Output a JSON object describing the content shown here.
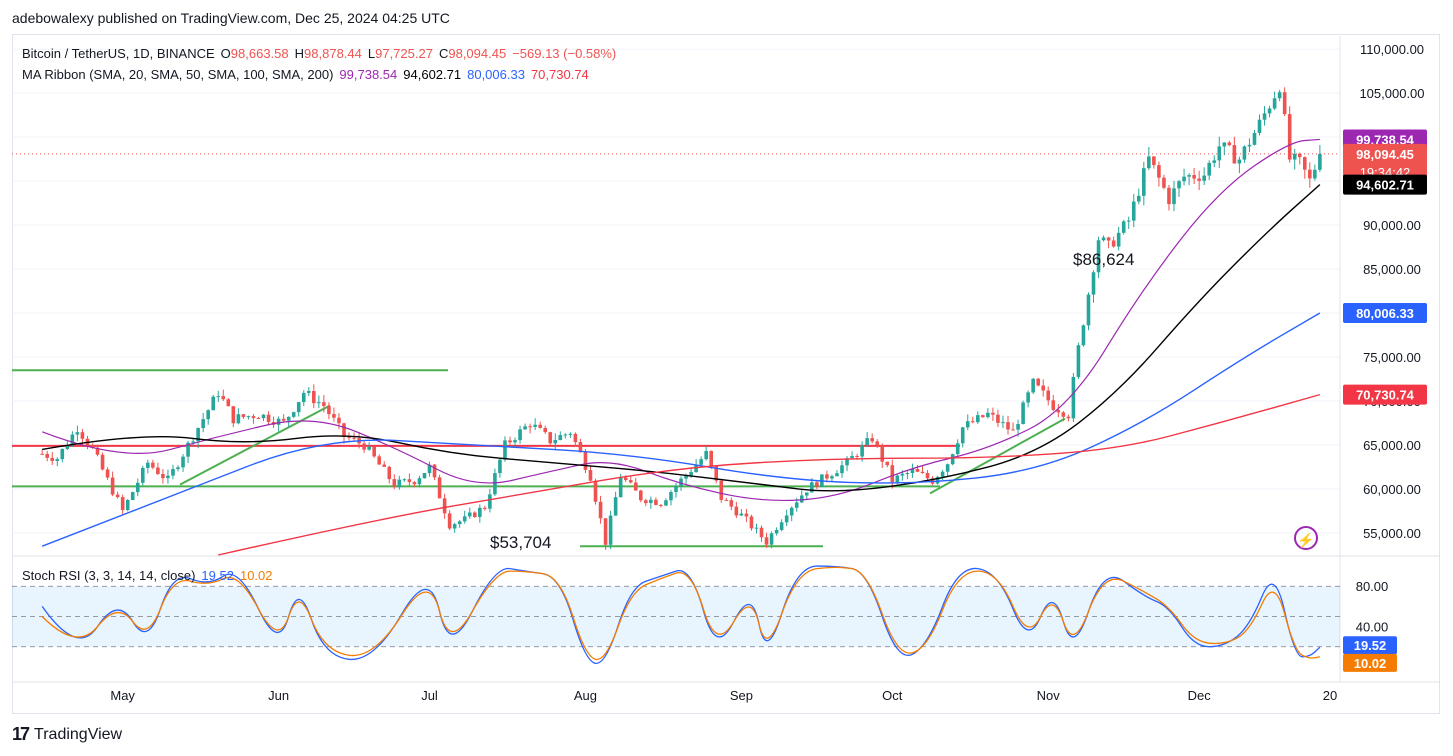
{
  "header": {
    "publisher_line": "adebowalexy published on TradingView.com, Dec 25, 2024 04:25 UTC"
  },
  "legend": {
    "symbol": "Bitcoin / TetherUS, 1D, BINANCE",
    "open_label": "O",
    "open": "98,663.58",
    "high_label": "H",
    "high": "98,878.44",
    "low_label": "L",
    "low": "97,725.27",
    "close_label": "C",
    "close": "98,094.45",
    "change": "−569.13 (−0.58%)",
    "ribbon_label": "MA Ribbon (SMA, 20, SMA, 50, SMA, 100, SMA, 200)",
    "ma20": "99,738.54",
    "ma50": "94,602.71",
    "ma100": "80,006.33",
    "ma200": "70,730.74"
  },
  "rsi_legend": {
    "label": "Stoch RSI (3, 3, 14, 14, close)",
    "k": "19.52",
    "d": "10.02"
  },
  "price_tags": {
    "ma20": "99,738.54",
    "close": "98,094.45",
    "countdown": "19:34:42",
    "ma50": "94,602.71",
    "ma100": "80,006.33",
    "ma200": "70,730.74"
  },
  "rsi_tags": {
    "k": "19.52",
    "d": "10.02"
  },
  "annotations": {
    "high_label": "$86,624",
    "low_label": "$53,704"
  },
  "footer": {
    "brand": "TradingView",
    "logo": "17"
  },
  "colors": {
    "up": "#26a69a",
    "down": "#ef5350",
    "ma20": "#9c27b0",
    "ma50": "#000000",
    "ma100": "#2962ff",
    "ma200": "#f23645",
    "stoch_k": "#2962ff",
    "stoch_d": "#f57c00",
    "trend": "#4caf50",
    "resistance": "#f23645"
  },
  "chart_data": [
    {
      "type": "candlestick",
      "title": "Bitcoin / TetherUS, 1D, BINANCE",
      "x_ticks": [
        "May",
        "Jun",
        "Jul",
        "Aug",
        "Sep",
        "Oct",
        "Nov",
        "Dec",
        "20"
      ],
      "y_ticks": [
        55000,
        60000,
        65000,
        70000,
        75000,
        80000,
        85000,
        90000,
        95000,
        100000,
        105000,
        110000
      ],
      "y_tick_labels": [
        "55,000.00",
        "60,000.00",
        "65,000.00",
        "70,000.00",
        "75,000.00",
        "80,000.00",
        "85,000.00",
        "90,000.00",
        "95,000.00",
        "100,000.00",
        "105,000.00",
        "110,000.00"
      ],
      "ylim": [
        52500,
        111500
      ],
      "close_path": [
        [
          "Apr 15",
          64000
        ],
        [
          "Apr 18",
          63500
        ],
        [
          "Apr 22",
          67000
        ],
        [
          "Apr 25",
          64500
        ],
        [
          "May 1",
          57500
        ],
        [
          "May 6",
          63000
        ],
        [
          "May 10",
          61000
        ],
        [
          "May 15",
          66000
        ],
        [
          "May 20",
          71000
        ],
        [
          "May 23",
          68000
        ],
        [
          "May 28",
          68500
        ],
        [
          "Jun 2",
          67500
        ],
        [
          "Jun 6",
          71000
        ],
        [
          "Jun 10",
          69500
        ],
        [
          "Jun 14",
          66000
        ],
        [
          "Jun 18",
          65000
        ],
        [
          "Jun 24",
          60500
        ],
        [
          "Jun 28",
          61000
        ],
        [
          "Jul 1",
          62500
        ],
        [
          "Jul 5",
          56000
        ],
        [
          "Jul 8",
          56500
        ],
        [
          "Jul 12",
          58000
        ],
        [
          "Jul 16",
          65000
        ],
        [
          "Jul 21",
          67500
        ],
        [
          "Jul 25",
          65500
        ],
        [
          "Jul 29",
          66500
        ],
        [
          "Aug 2",
          61500
        ],
        [
          "Aug 5",
          54000
        ],
        [
          "Aug 8",
          61500
        ],
        [
          "Aug 12",
          59000
        ],
        [
          "Aug 16",
          58500
        ],
        [
          "Aug 20",
          61000
        ],
        [
          "Aug 25",
          64000
        ],
        [
          "Aug 28",
          59000
        ],
        [
          "Sep 1",
          57000
        ],
        [
          "Sep 6",
          54000
        ],
        [
          "Sep 10",
          57500
        ],
        [
          "Sep 14",
          60000
        ],
        [
          "Sep 18",
          61500
        ],
        [
          "Sep 22",
          63000
        ],
        [
          "Sep 27",
          65800
        ],
        [
          "Oct 1",
          61000
        ],
        [
          "Oct 5",
          62000
        ],
        [
          "Oct 9",
          61000
        ],
        [
          "Oct 12",
          63000
        ],
        [
          "Oct 15",
          67000
        ],
        [
          "Oct 20",
          68500
        ],
        [
          "Oct 25",
          66500
        ],
        [
          "Oct 29",
          72000
        ],
        [
          "Nov 2",
          69500
        ],
        [
          "Nov 5",
          68500
        ],
        [
          "Nov 7",
          76000
        ],
        [
          "Nov 11",
          88500
        ],
        [
          "Nov 13",
          87500
        ],
        [
          "Nov 17",
          90500
        ],
        [
          "Nov 21",
          97500
        ],
        [
          "Nov 25",
          93000
        ],
        [
          "Nov 28",
          95500
        ],
        [
          "Dec 2",
          95800
        ],
        [
          "Dec 5",
          99000
        ],
        [
          "Dec 9",
          97500
        ],
        [
          "Dec 13",
          101500
        ],
        [
          "Dec 17",
          106000
        ],
        [
          "Dec 19",
          97500
        ],
        [
          "Dec 21",
          97000
        ],
        [
          "Dec 23",
          95000
        ],
        [
          "Dec 25",
          98094
        ]
      ],
      "series": [
        {
          "name": "SMA 20",
          "values": [
            [
              "Apr 15",
              66500
            ],
            [
              "May 1",
              63000
            ],
            [
              "May 20",
              66000
            ],
            [
              "Jun 8",
              68500
            ],
            [
              "Jun 25",
              64500
            ],
            [
              "Jul 10",
              60000
            ],
            [
              "Jul 25",
              62000
            ],
            [
              "Aug 6",
              63500
            ],
            [
              "Aug 20",
              60500
            ],
            [
              "Sep 5",
              58500
            ],
            [
              "Sep 20",
              59000
            ],
            [
              "Oct 5",
              62500
            ],
            [
              "Oct 20",
              64500
            ],
            [
              "Nov 5",
              69000
            ],
            [
              "Nov 20",
              83000
            ],
            [
              "Dec 5",
              94000
            ],
            [
              "Dec 19",
              99500
            ],
            [
              "Dec 25",
              99739
            ]
          ]
        },
        {
          "name": "SMA 50",
          "values": [
            [
              "Apr 15",
              64500
            ],
            [
              "May 5",
              66500
            ],
            [
              "May 25",
              65000
            ],
            [
              "Jun 15",
              66500
            ],
            [
              "Jul 5",
              64000
            ],
            [
              "Jul 25",
              63000
            ],
            [
              "Aug 15",
              62000
            ],
            [
              "Sep 5",
              60500
            ],
            [
              "Sep 20",
              59500
            ],
            [
              "Oct 10",
              61000
            ],
            [
              "Oct 30",
              64000
            ],
            [
              "Nov 15",
              71000
            ],
            [
              "Dec 1",
              81500
            ],
            [
              "Dec 15",
              89500
            ],
            [
              "Dec 25",
              94603
            ]
          ]
        },
        {
          "name": "SMA 100",
          "values": [
            [
              "Apr 15",
              53500
            ],
            [
              "May 10",
              59000
            ],
            [
              "Jun 10",
              66000
            ],
            [
              "Jul 10",
              65000
            ],
            [
              "Aug 10",
              64000
            ],
            [
              "Sep 10",
              61000
            ],
            [
              "Oct 5",
              60500
            ],
            [
              "Oct 30",
              62000
            ],
            [
              "Nov 20",
              67500
            ],
            [
              "Dec 10",
              75000
            ],
            [
              "Dec 25",
              80006
            ]
          ]
        },
        {
          "name": "SMA 200",
          "values": [
            [
              "May 20",
              52500
            ],
            [
              "Jun 20",
              56500
            ],
            [
              "Jul 20",
              59500
            ],
            [
              "Aug 20",
              62500
            ],
            [
              "Sep 20",
              63500
            ],
            [
              "Oct 20",
              63500
            ],
            [
              "Nov 15",
              64500
            ],
            [
              "Dec 5",
              67500
            ],
            [
              "Dec 25",
              70731
            ]
          ]
        }
      ],
      "annotations": [
        "$86,624",
        "$53,704"
      ]
    },
    {
      "type": "line",
      "title": "Stoch RSI (3, 3, 14, 14, close)",
      "y_ticks": [
        80,
        40
      ],
      "y_tick_labels": [
        "80.00",
        "40.00"
      ],
      "ylim": [
        -15,
        110
      ],
      "bands": [
        20,
        50,
        80
      ],
      "series": [
        {
          "name": "K",
          "last": 19.52,
          "values": [
            [
              "Apr 15",
              60
            ],
            [
              "Apr 22",
              10
            ],
            [
              "Apr 30",
              70
            ],
            [
              "May 6",
              20
            ],
            [
              "May 11",
              95
            ],
            [
              "May 18",
              80
            ],
            [
              "May 24",
              100
            ],
            [
              "Jun 1",
              15
            ],
            [
              "Jun 5",
              85
            ],
            [
              "Jun 10",
              10
            ],
            [
              "Jun 20",
              5
            ],
            [
              "Jul 1",
              100
            ],
            [
              "Jul 5",
              10
            ],
            [
              "Jul 14",
              100
            ],
            [
              "Jul 20",
              95
            ],
            [
              "Jul 27",
              90
            ],
            [
              "Aug 1",
              5
            ],
            [
              "Aug 5",
              2
            ],
            [
              "Aug 10",
              80
            ],
            [
              "Aug 16",
              90
            ],
            [
              "Aug 22",
              100
            ],
            [
              "Aug 27",
              10
            ],
            [
              "Sep 3",
              80
            ],
            [
              "Sep 6",
              5
            ],
            [
              "Sep 12",
              100
            ],
            [
              "Sep 20",
              100
            ],
            [
              "Sep 26",
              95
            ],
            [
              "Oct 2",
              5
            ],
            [
              "Oct 8",
              20
            ],
            [
              "Oct 14",
              100
            ],
            [
              "Oct 22",
              95
            ],
            [
              "Oct 28",
              20
            ],
            [
              "Nov 2",
              80
            ],
            [
              "Nov 6",
              10
            ],
            [
              "Nov 12",
              100
            ],
            [
              "Nov 20",
              70
            ],
            [
              "Nov 25",
              60
            ],
            [
              "Nov 30",
              20
            ],
            [
              "Dec 6",
              20
            ],
            [
              "Dec 11",
              40
            ],
            [
              "Dec 16",
              100
            ],
            [
              "Dec 20",
              10
            ],
            [
              "Dec 23",
              10
            ],
            [
              "Dec 25",
              19.52
            ]
          ]
        },
        {
          "name": "D",
          "last": 10.02,
          "values": [
            [
              "Apr 15",
              50
            ],
            [
              "Apr 22",
              15
            ],
            [
              "Apr 30",
              65
            ],
            [
              "May 6",
              25
            ],
            [
              "May 11",
              90
            ],
            [
              "May 18",
              80
            ],
            [
              "May 24",
              95
            ],
            [
              "Jun 1",
              20
            ],
            [
              "Jun 5",
              80
            ],
            [
              "Jun 10",
              15
            ],
            [
              "Jun 20",
              8
            ],
            [
              "Jul 1",
              95
            ],
            [
              "Jul 5",
              15
            ],
            [
              "Jul 14",
              95
            ],
            [
              "Jul 20",
              95
            ],
            [
              "Jul 27",
              90
            ],
            [
              "Aug 1",
              10
            ],
            [
              "Aug 5",
              5
            ],
            [
              "Aug 10",
              75
            ],
            [
              "Aug 16",
              88
            ],
            [
              "Aug 22",
              98
            ],
            [
              "Aug 27",
              15
            ],
            [
              "Sep 3",
              75
            ],
            [
              "Sep 6",
              10
            ],
            [
              "Sep 12",
              95
            ],
            [
              "Sep 20",
              100
            ],
            [
              "Sep 26",
              95
            ],
            [
              "Oct 2",
              10
            ],
            [
              "Oct 8",
              18
            ],
            [
              "Oct 14",
              95
            ],
            [
              "Oct 22",
              95
            ],
            [
              "Oct 28",
              25
            ],
            [
              "Nov 2",
              75
            ],
            [
              "Nov 6",
              15
            ],
            [
              "Nov 12",
              95
            ],
            [
              "Nov 20",
              75
            ],
            [
              "Nov 25",
              60
            ],
            [
              "Nov 30",
              25
            ],
            [
              "Dec 6",
              22
            ],
            [
              "Dec 11",
              35
            ],
            [
              "Dec 16",
              90
            ],
            [
              "Dec 20",
              15
            ],
            [
              "Dec 23",
              8
            ],
            [
              "Dec 25",
              10.02
            ]
          ]
        }
      ]
    }
  ]
}
